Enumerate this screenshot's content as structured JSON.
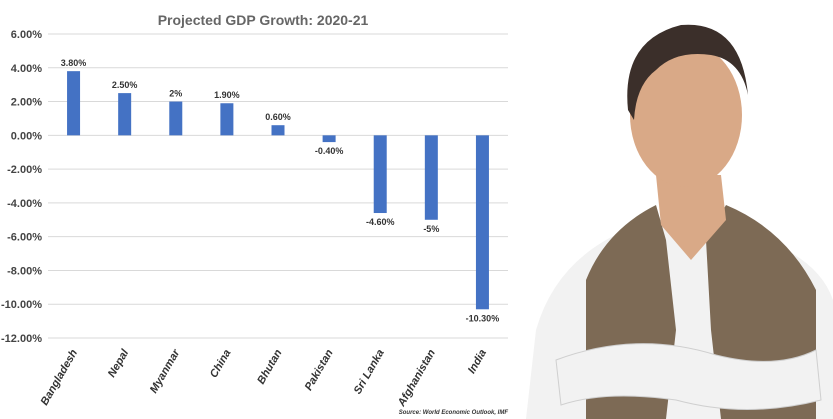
{
  "chart_data": {
    "type": "bar",
    "title": "Projected GDP Growth: 2020-21",
    "categories": [
      "Bangladesh",
      "Nepal",
      "Myanmar",
      "China",
      "Bhutan",
      "Pakistan",
      "Sri Lanka",
      "Afghanistan",
      "India"
    ],
    "values": [
      3.8,
      2.5,
      2.0,
      1.9,
      0.6,
      -0.4,
      -4.6,
      -5.0,
      -10.3
    ],
    "data_labels": [
      "3.80%",
      "2.50%",
      "2%",
      "1.90%",
      "0.60%",
      "-0.40%",
      "-4.60%",
      "-5%",
      "-10.30%"
    ],
    "ylim": [
      -12,
      6
    ],
    "y_ticks": [
      6,
      4,
      2,
      0,
      -2,
      -4,
      -6,
      -8,
      -10,
      -12
    ],
    "y_tick_labels": [
      "6.00%",
      "4.00%",
      "2.00%",
      "0.00%",
      "-2.00%",
      "-4.00%",
      "-6.00%",
      "-8.00%",
      "-10.00%",
      "-12.00%"
    ],
    "xlabel": "",
    "ylabel": "",
    "grid": true,
    "bar_color": "#4472c4",
    "grid_color": "#d9d9d9",
    "source": "Source: World Economic Outlook, IMF"
  },
  "photo": {
    "background": "#ffffff",
    "vest_color": "#7d6a55",
    "shirt_color": "#f2f2f2",
    "skin_color": "#d9a987",
    "hair_color": "#3b2f2a"
  }
}
